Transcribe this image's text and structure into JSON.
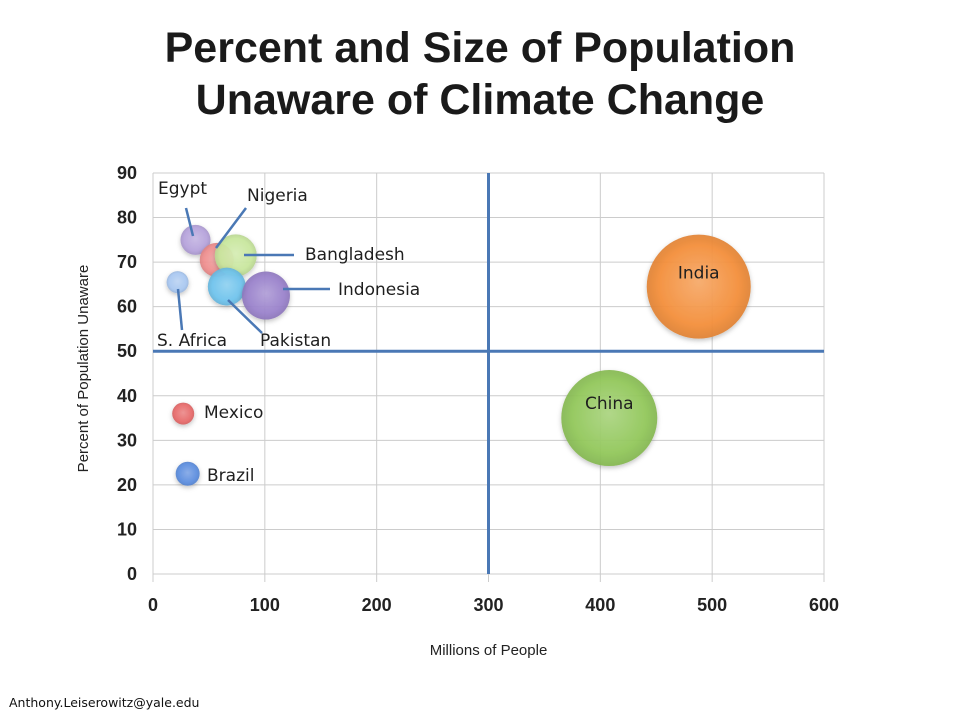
{
  "title_line1": "Percent and Size of Population",
  "title_line2": "Unaware of Climate Change",
  "credit": "Anthony.Leiserowitz@yale.edu",
  "colors": {
    "divider": "#4a78b5",
    "grid": "#cccccc"
  },
  "chart_data": {
    "type": "scatter",
    "title": "Percent and Size of Population Unaware of Climate Change",
    "xlabel": "Millions of People",
    "ylabel": "Percent of Population Unaware",
    "xlim": [
      0,
      600
    ],
    "ylim": [
      0,
      90
    ],
    "x_ticks": [
      "0",
      "100",
      "200",
      "300",
      "400",
      "500",
      "600"
    ],
    "y_ticks": [
      "0",
      "10",
      "20",
      "30",
      "40",
      "50",
      "60",
      "70",
      "80",
      "90"
    ],
    "grid": true,
    "reference_lines": {
      "x": 300,
      "y": 50
    },
    "points": [
      {
        "label": "Egypt",
        "x": 38,
        "y": 75,
        "color": "#b6a3dc"
      },
      {
        "label": "Nigeria",
        "x": 57,
        "y": 70.5,
        "color": "#f08f8f"
      },
      {
        "label": "Bangladesh",
        "x": 74,
        "y": 71.5,
        "color": "#c9e89e"
      },
      {
        "label": "S. Africa",
        "x": 22,
        "y": 65.5,
        "color": "#a9c8f2"
      },
      {
        "label": "Pakistan",
        "x": 66,
        "y": 64.5,
        "color": "#6fc4ee"
      },
      {
        "label": "Indonesia",
        "x": 101,
        "y": 62.5,
        "color": "#9a82cc"
      },
      {
        "label": "Mexico",
        "x": 27,
        "y": 36,
        "color": "#e86a6a"
      },
      {
        "label": "Brazil",
        "x": 31,
        "y": 22.5,
        "color": "#5c8ee0"
      },
      {
        "label": "China",
        "x": 408,
        "y": 35,
        "color": "#92c85a"
      },
      {
        "label": "India",
        "x": 488,
        "y": 64.5,
        "color": "#f58f3a"
      }
    ]
  }
}
